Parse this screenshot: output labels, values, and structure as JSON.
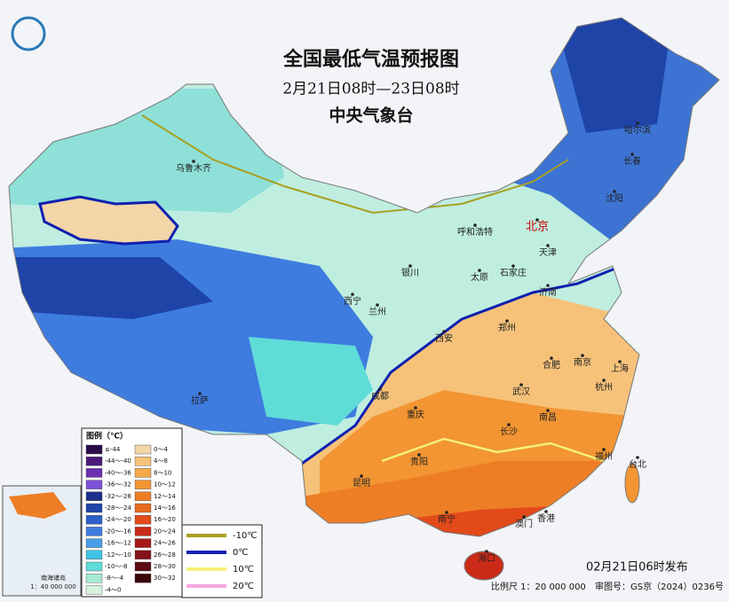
{
  "header": {
    "title": "全国最低气温预报图",
    "subtitle": "2月21日08时—23日08时",
    "issuer": "中央气象台"
  },
  "cities": [
    "乌鲁木齐",
    "哈尔滨",
    "长春",
    "沈阳",
    "呼和浩特",
    "北京",
    "天津",
    "银川",
    "太原",
    "石家庄",
    "济南",
    "西宁",
    "兰州",
    "西安",
    "郑州",
    "合肥",
    "南京",
    "上海",
    "杭州",
    "拉萨",
    "成都",
    "重庆",
    "武汉",
    "长沙",
    "南昌",
    "福州",
    "台北",
    "贵阳",
    "昆明",
    "南宁",
    "澳门",
    "香港",
    "海口"
  ],
  "legend": {
    "title": "图例（℃）",
    "left": [
      {
        "label": "≤-44",
        "color": "#2b0a4a"
      },
      {
        "label": "-44～-40",
        "color": "#4b1a7a"
      },
      {
        "label": "-40～-36",
        "color": "#6a2fae"
      },
      {
        "label": "-36～-32",
        "color": "#7d4fd6"
      },
      {
        "label": "-32～-28",
        "color": "#1d2f8a"
      },
      {
        "label": "-28～-24",
        "color": "#1f44a8"
      },
      {
        "label": "-24～-20",
        "color": "#2e5fc8"
      },
      {
        "label": "-20～-16",
        "color": "#3e7ce0"
      },
      {
        "label": "-16～-12",
        "color": "#4aa0e8"
      },
      {
        "label": "-12～-10",
        "color": "#3fc4e6"
      },
      {
        "label": "-10～-8",
        "color": "#5fdcd8"
      },
      {
        "label": "-8～-4",
        "color": "#a6ead6"
      },
      {
        "label": "-4～0",
        "color": "#d6f2dc"
      }
    ],
    "right": [
      {
        "label": "0～4",
        "color": "#f3d5a8"
      },
      {
        "label": "4～8",
        "color": "#f6c27a"
      },
      {
        "label": "8～10",
        "color": "#f5a94a"
      },
      {
        "label": "10～12",
        "color": "#f29532"
      },
      {
        "label": "12～14",
        "color": "#ee7e26"
      },
      {
        "label": "14～16",
        "color": "#e86a1e"
      },
      {
        "label": "16～20",
        "color": "#e24a1a"
      },
      {
        "label": "20～24",
        "color": "#cc2a18"
      },
      {
        "label": "24～26",
        "color": "#a81818"
      },
      {
        "label": "26～28",
        "color": "#86121a"
      },
      {
        "label": "28～30",
        "color": "#5e0c14"
      },
      {
        "label": "30～32",
        "color": "#3a0608"
      }
    ],
    "lines": [
      {
        "label": "-10℃",
        "color": "#a8a020"
      },
      {
        "label": "0℃",
        "color": "#1020b0"
      },
      {
        "label": "10℃",
        "color": "#f4f07a"
      },
      {
        "label": "20℃",
        "color": "#f6a8e0"
      }
    ]
  },
  "inset": {
    "title": "南海诸岛",
    "scale": "1：40 000 000"
  },
  "footer": {
    "issued": "02月21日06时发布",
    "scale": "比例尺 1：20 000 000",
    "approval": "审图号：GS京（2024）0236号"
  }
}
